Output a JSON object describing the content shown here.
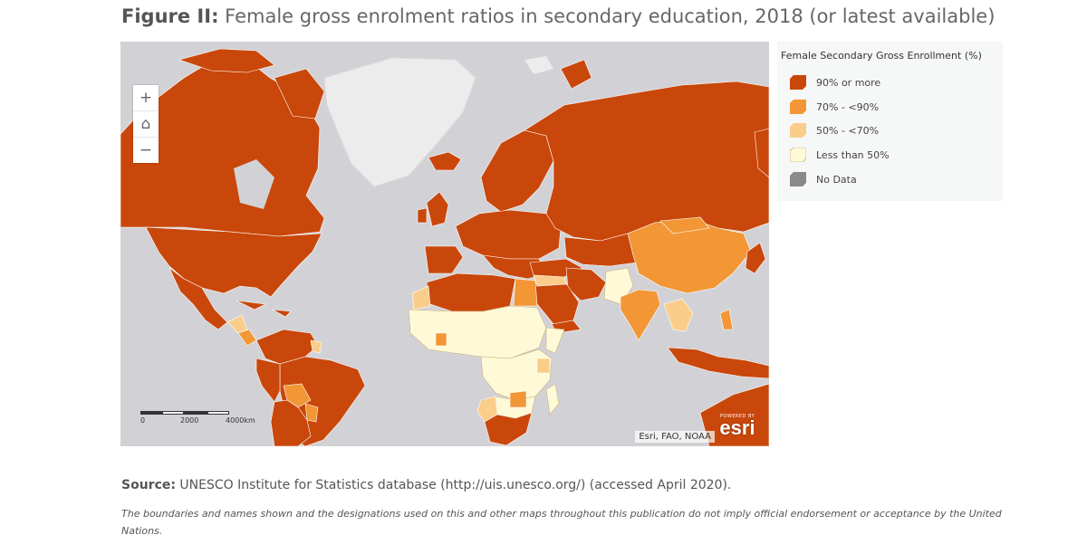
{
  "title": {
    "label": "Figure II:",
    "text": "Female gross enrolment ratios in secondary education, 2018 (or latest available)"
  },
  "map": {
    "zoom_in_glyph": "+",
    "home_glyph": "⌂",
    "zoom_out_glyph": "−",
    "scale": {
      "ticks": [
        "0",
        "2000",
        "4000km"
      ]
    },
    "attribution": "Esri, FAO, NOAA",
    "badge": {
      "powered": "POWERED BY",
      "brand": "esri"
    },
    "colors": {
      "high": "#c9470b",
      "mid_high": "#f29636",
      "mid_low": "#fbcd8a",
      "low": "#fef9d7",
      "no_data": "#8a8a8a",
      "ocean": "#d2d2d6",
      "unmapped_land": "#ececec"
    }
  },
  "legend": {
    "title": "Female Secondary Gross Enrollment (%)",
    "items": [
      {
        "label": "90% or more",
        "color": "#c9470b"
      },
      {
        "label": "70% - <90%",
        "color": "#f29636"
      },
      {
        "label": "50% - <70%",
        "color": "#fbcd8a"
      },
      {
        "label": "Less than 50%",
        "color": "#fef9d7"
      },
      {
        "label": "No Data",
        "color": "#8a8a8a"
      }
    ]
  },
  "source": {
    "label": "Source:",
    "text": "UNESCO Institute for Statistics database (http://uis.unesco.org/) (accessed April 2020)."
  },
  "disclaimer": "The boundaries and names shown and the designations used on this and other maps throughout this publication do not imply official endorsement or acceptance by the United Nations."
}
